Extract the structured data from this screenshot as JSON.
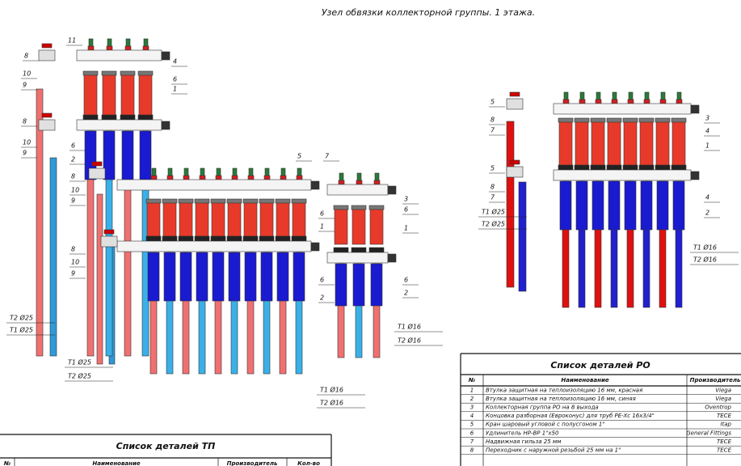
{
  "title": "Узел обвязки коллекторной группы. 1 этажа.",
  "left_callouts": [
    "11",
    "8",
    "4",
    "10",
    "6",
    "9",
    "1",
    "8",
    "10",
    "9",
    "6",
    "2",
    "8",
    "10",
    "9",
    "5",
    "7",
    "6",
    "1",
    "3",
    "6",
    "1",
    "8",
    "10",
    "9",
    "6",
    "2",
    "6",
    "2"
  ],
  "right_callouts": [
    "5",
    "8",
    "7",
    "3",
    "4",
    "1",
    "5",
    "8",
    "7",
    "4",
    "2"
  ],
  "pipe_labels": [
    "T2 Ø25",
    "T1 Ø25",
    "T1 Ø25",
    "T2 Ø25",
    "T1 Ø16",
    "T2 Ø16",
    "T1 Ø16",
    "T2 Ø16",
    "T1 Ø25",
    "T2 Ø25",
    "T1 Ø16",
    "T2 Ø16"
  ],
  "table_ro": {
    "title": "Список деталей РО",
    "headers": [
      "№",
      "Наименование",
      "Производитель"
    ],
    "rows": [
      [
        "1",
        "Втулка защитная на теплоизоляцию 16 мм, красная",
        "Viega"
      ],
      [
        "2",
        "Втулка защитная на теплоизоляцию 16 мм, синяя",
        "Viega"
      ],
      [
        "3",
        "Коллекторная группа РО на 8 выхода",
        "Oventrop"
      ],
      [
        "4",
        "Концовка разборная (Евроконус) для труб PE-Xc 16x3/4\"",
        "TECE"
      ],
      [
        "5",
        "Кран шаровый угловой с полусгоном 1\"",
        "Itap"
      ],
      [
        "6",
        "Удлинитель НР-ВР 1\"x50",
        "General Fittings"
      ],
      [
        "7",
        "Надвижная гильза 25 мм",
        "TECE"
      ],
      [
        "8",
        "Переходник с наружной резьбой 25 мм на 1\"",
        "TECE"
      ]
    ]
  },
  "table_tp": {
    "title": "Список деталей ТП",
    "headers": [
      "№",
      "Наименование",
      "Производитель",
      "Кол-во"
    ]
  }
}
